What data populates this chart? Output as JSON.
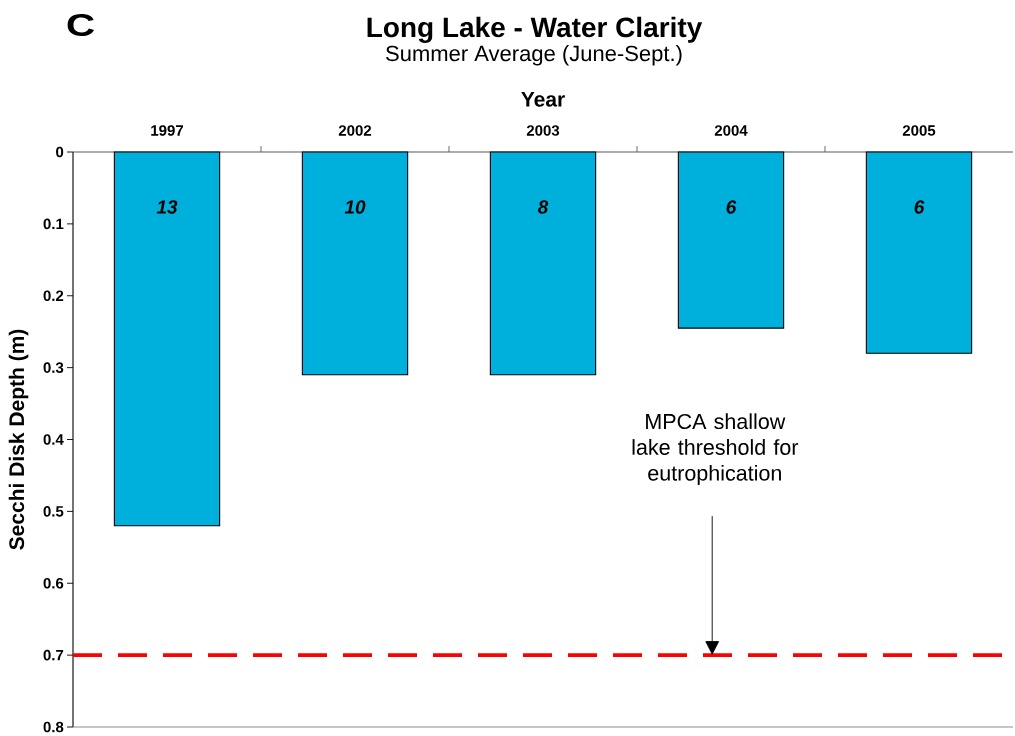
{
  "chart_data": {
    "type": "bar",
    "title": "Long Lake - Water Clarity",
    "subtitle": "Summer Average (June-Sept.)",
    "xlabel": "Year",
    "ylabel": "Secchi Disk Depth (m)",
    "annotations": [
      "C",
      "13",
      "10",
      "8",
      "6",
      "6",
      "MPCA shallow lake threshold for eutrophication"
    ],
    "categories": [
      "1997",
      "2002",
      "2003",
      "2004",
      "2005"
    ],
    "values": [
      0.52,
      0.31,
      0.31,
      0.245,
      0.28
    ],
    "color": "#00b0dc",
    "ylim": [
      0.8,
      0
    ],
    "yticks": [
      0,
      0.1,
      0.2,
      0.3,
      0.4,
      0.5,
      0.6,
      0.7,
      0.8
    ],
    "ref_lines": [
      {
        "axis": "y",
        "value": 0.7,
        "color": "#ff0000",
        "line_style": "dashed"
      }
    ]
  }
}
